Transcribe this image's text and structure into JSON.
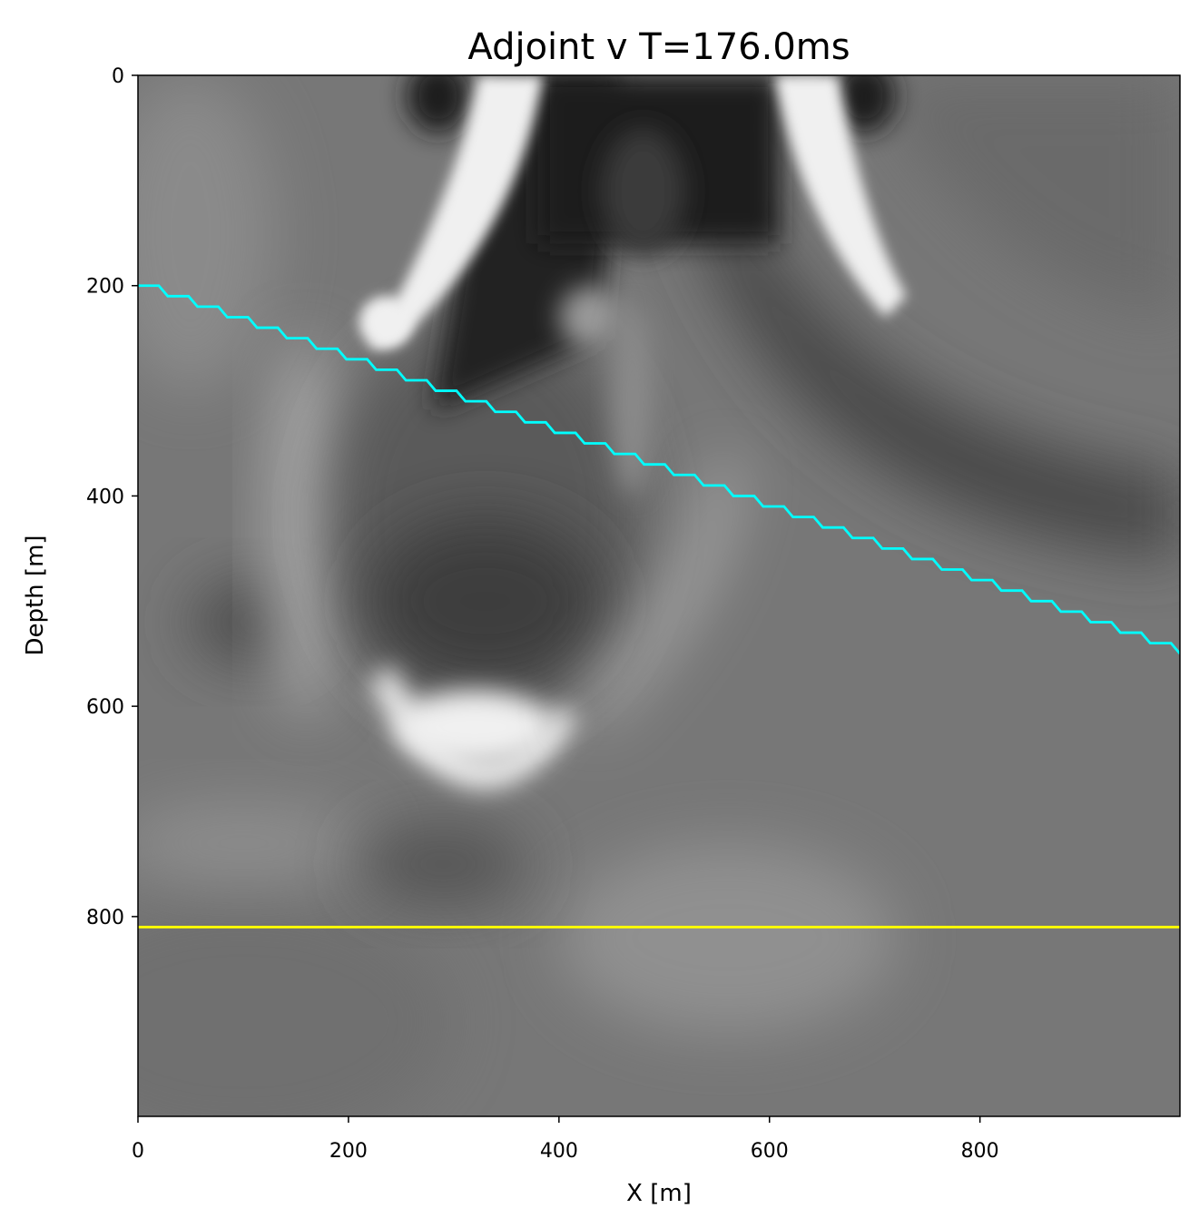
{
  "chart_data": {
    "type": "heatmap",
    "title": "Adjoint v T=176.0ms",
    "xlabel": "X [m]",
    "ylabel": "Depth [m]",
    "xlim": [
      0,
      990
    ],
    "ylim": [
      990,
      0
    ],
    "xticks": [
      0,
      200,
      400,
      600,
      800
    ],
    "yticks": [
      0,
      200,
      400,
      600,
      800
    ],
    "colormap": "gray",
    "grid": false,
    "lines": [
      {
        "name": "dipping-interface",
        "color": "#00ffff",
        "x": [
          0,
          990
        ],
        "depth": [
          200,
          550
        ],
        "step_depth": 10
      },
      {
        "name": "horizontal-interface",
        "color": "#ffff00",
        "x": [
          0,
          990
        ],
        "depth": [
          810,
          810
        ]
      }
    ]
  }
}
